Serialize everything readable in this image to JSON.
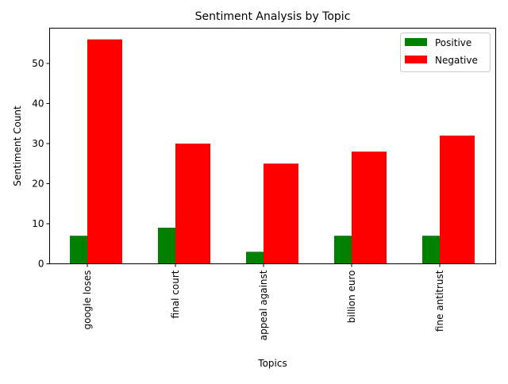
{
  "chart_data": {
    "type": "bar",
    "title": "Sentiment Analysis by Topic",
    "xlabel": "Topics",
    "ylabel": "Sentiment Count",
    "categories": [
      "google loses",
      "final court",
      "appeal against",
      "billion euro",
      "fine antitrust"
    ],
    "series": [
      {
        "name": "Positive",
        "values": [
          7,
          9,
          3,
          7,
          7
        ],
        "color": "#008000"
      },
      {
        "name": "Negative",
        "values": [
          56,
          30,
          25,
          28,
          32
        ],
        "color": "#ff0000"
      }
    ],
    "ylim": [
      0,
      58.8
    ],
    "yticks": [
      0,
      10,
      20,
      30,
      40,
      50
    ],
    "grid": false,
    "legend_position": "top-right"
  }
}
